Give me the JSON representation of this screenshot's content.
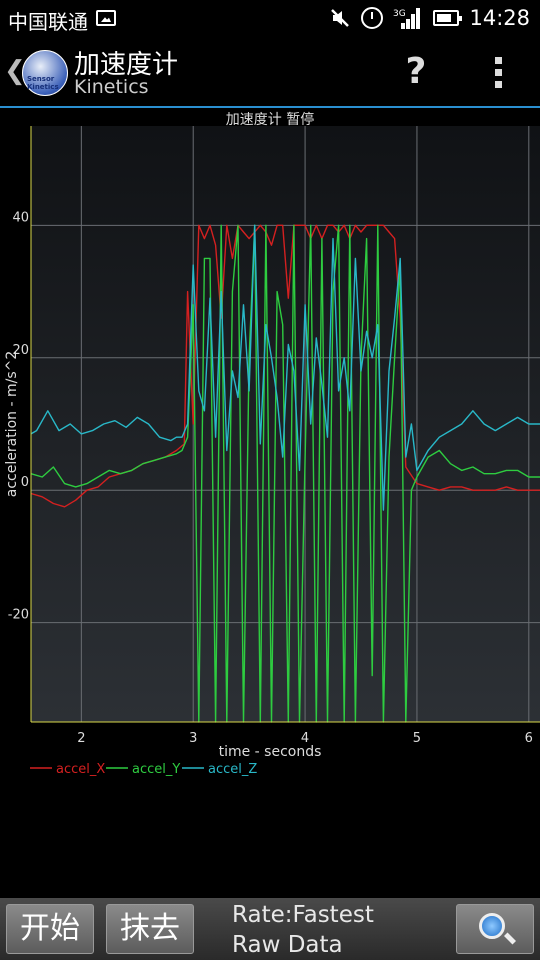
{
  "status_bar": {
    "carrier": "中国联通",
    "network_type": "3G",
    "time": "14:28",
    "icons": [
      "image-notification-icon",
      "mute-icon",
      "alarm-icon",
      "signal-icon",
      "battery-icon"
    ]
  },
  "action_bar": {
    "title": "加速度计",
    "subtitle": "Kinetics",
    "app_icon_text": "Sensor Kinetics",
    "help_label": "?",
    "accent_color": "#2a8fd0"
  },
  "chart_data": {
    "type": "line",
    "title": "加速度计 暂停",
    "xlabel": "time - seconds",
    "ylabel": "acceleration - m/s^2",
    "xlim": [
      1.55,
      6.1
    ],
    "ylim": [
      -35,
      55
    ],
    "xticks": [
      "2",
      "3",
      "4",
      "5",
      "6"
    ],
    "yticks": [
      "40",
      "20",
      "0",
      "-20"
    ],
    "grid": true,
    "legend_placement": "bottom-left",
    "series": [
      {
        "name": "accel_X",
        "color": "#d42020",
        "x": [
          1.55,
          1.65,
          1.75,
          1.85,
          1.95,
          2.05,
          2.15,
          2.25,
          2.35,
          2.45,
          2.55,
          2.65,
          2.75,
          2.85,
          2.92,
          2.95,
          3.0,
          3.05,
          3.1,
          3.15,
          3.2,
          3.25,
          3.3,
          3.35,
          3.4,
          3.45,
          3.5,
          3.55,
          3.6,
          3.65,
          3.7,
          3.75,
          3.8,
          3.85,
          3.9,
          3.95,
          4.0,
          4.05,
          4.1,
          4.15,
          4.2,
          4.25,
          4.3,
          4.35,
          4.4,
          4.45,
          4.5,
          4.55,
          4.6,
          4.65,
          4.7,
          4.75,
          4.8,
          4.85,
          4.9,
          5.0,
          5.1,
          5.2,
          5.3,
          5.4,
          5.5,
          5.6,
          5.7,
          5.8,
          5.9,
          6.0,
          6.1
        ],
        "y": [
          -0.5,
          -1.0,
          -2.0,
          -2.5,
          -1.5,
          0.0,
          0.5,
          2.0,
          2.5,
          3.0,
          4.0,
          4.5,
          5.0,
          6.0,
          7.0,
          30,
          10,
          40,
          38,
          40,
          37,
          26,
          40,
          35,
          40,
          39,
          38,
          39,
          40,
          39,
          37,
          40,
          40,
          29,
          40,
          40,
          40,
          38,
          40,
          38,
          40,
          40,
          39,
          40,
          38,
          40,
          39,
          40,
          40,
          40,
          40,
          39,
          38,
          26,
          3.5,
          1.0,
          0.5,
          0.0,
          0.5,
          0.5,
          0.0,
          0.0,
          0.0,
          0.5,
          0.0,
          0.0,
          0.0
        ]
      },
      {
        "name": "accel_Y",
        "color": "#2ecc40",
        "x": [
          1.55,
          1.65,
          1.75,
          1.85,
          1.95,
          2.05,
          2.15,
          2.25,
          2.35,
          2.45,
          2.55,
          2.65,
          2.75,
          2.85,
          2.9,
          2.95,
          3.0,
          3.05,
          3.1,
          3.15,
          3.2,
          3.25,
          3.3,
          3.35,
          3.4,
          3.45,
          3.5,
          3.55,
          3.6,
          3.65,
          3.7,
          3.75,
          3.8,
          3.85,
          3.9,
          3.95,
          4.0,
          4.05,
          4.1,
          4.15,
          4.2,
          4.25,
          4.3,
          4.35,
          4.4,
          4.45,
          4.5,
          4.55,
          4.6,
          4.65,
          4.7,
          4.75,
          4.8,
          4.85,
          4.9,
          4.95,
          5.0,
          5.1,
          5.2,
          5.3,
          5.4,
          5.5,
          5.6,
          5.7,
          5.8,
          5.9,
          6.0,
          6.1
        ],
        "y": [
          2.5,
          2.0,
          3.5,
          1.0,
          0.5,
          1.0,
          2.0,
          3.0,
          2.5,
          3.0,
          4.0,
          4.5,
          5.0,
          5.5,
          6.0,
          8.0,
          28,
          -35,
          35,
          35,
          -35,
          40,
          -35,
          30,
          40,
          -35,
          20,
          40,
          -35,
          40,
          -35,
          30,
          25,
          -35,
          40,
          -35,
          5,
          40,
          -35,
          38,
          -35,
          30,
          40,
          -35,
          40,
          -35,
          20,
          38,
          -28,
          40,
          -35,
          5,
          20,
          34,
          -35,
          0,
          2,
          5,
          6,
          4,
          3,
          3.5,
          2.5,
          2.5,
          3,
          3,
          2,
          2
        ]
      },
      {
        "name": "accel_Z",
        "color": "#29b8c8",
        "x": [
          1.55,
          1.6,
          1.7,
          1.8,
          1.9,
          2.0,
          2.1,
          2.2,
          2.3,
          2.4,
          2.5,
          2.6,
          2.7,
          2.8,
          2.85,
          2.9,
          2.95,
          3.0,
          3.05,
          3.1,
          3.15,
          3.2,
          3.25,
          3.3,
          3.35,
          3.4,
          3.45,
          3.5,
          3.55,
          3.6,
          3.65,
          3.7,
          3.75,
          3.8,
          3.85,
          3.9,
          3.95,
          4.0,
          4.05,
          4.1,
          4.15,
          4.2,
          4.25,
          4.3,
          4.35,
          4.4,
          4.45,
          4.5,
          4.55,
          4.6,
          4.65,
          4.7,
          4.75,
          4.8,
          4.85,
          4.9,
          4.95,
          5.0,
          5.1,
          5.2,
          5.3,
          5.4,
          5.5,
          5.6,
          5.7,
          5.8,
          5.9,
          6.0,
          6.1
        ],
        "y": [
          8.5,
          9.0,
          12.0,
          9.0,
          10.0,
          8.5,
          9.0,
          10.0,
          10.5,
          9.5,
          11.0,
          10.0,
          8.0,
          7.5,
          8.0,
          8.0,
          10.0,
          34,
          15,
          12,
          29,
          8,
          30,
          6,
          18,
          14,
          28,
          15,
          40,
          7,
          25,
          20,
          14,
          5,
          22,
          18,
          3,
          28,
          10,
          23,
          16,
          8,
          38,
          15,
          20,
          12,
          35,
          18,
          24,
          20,
          25,
          -3,
          18,
          26,
          35,
          5,
          10,
          3,
          6,
          8,
          9,
          10,
          12,
          10,
          9,
          10,
          11,
          10,
          10
        ]
      }
    ]
  },
  "bottom_bar": {
    "start_label": "开始",
    "erase_label": "抹去",
    "rate_label": "Rate:Fastest",
    "mode_label": "Raw Data"
  }
}
